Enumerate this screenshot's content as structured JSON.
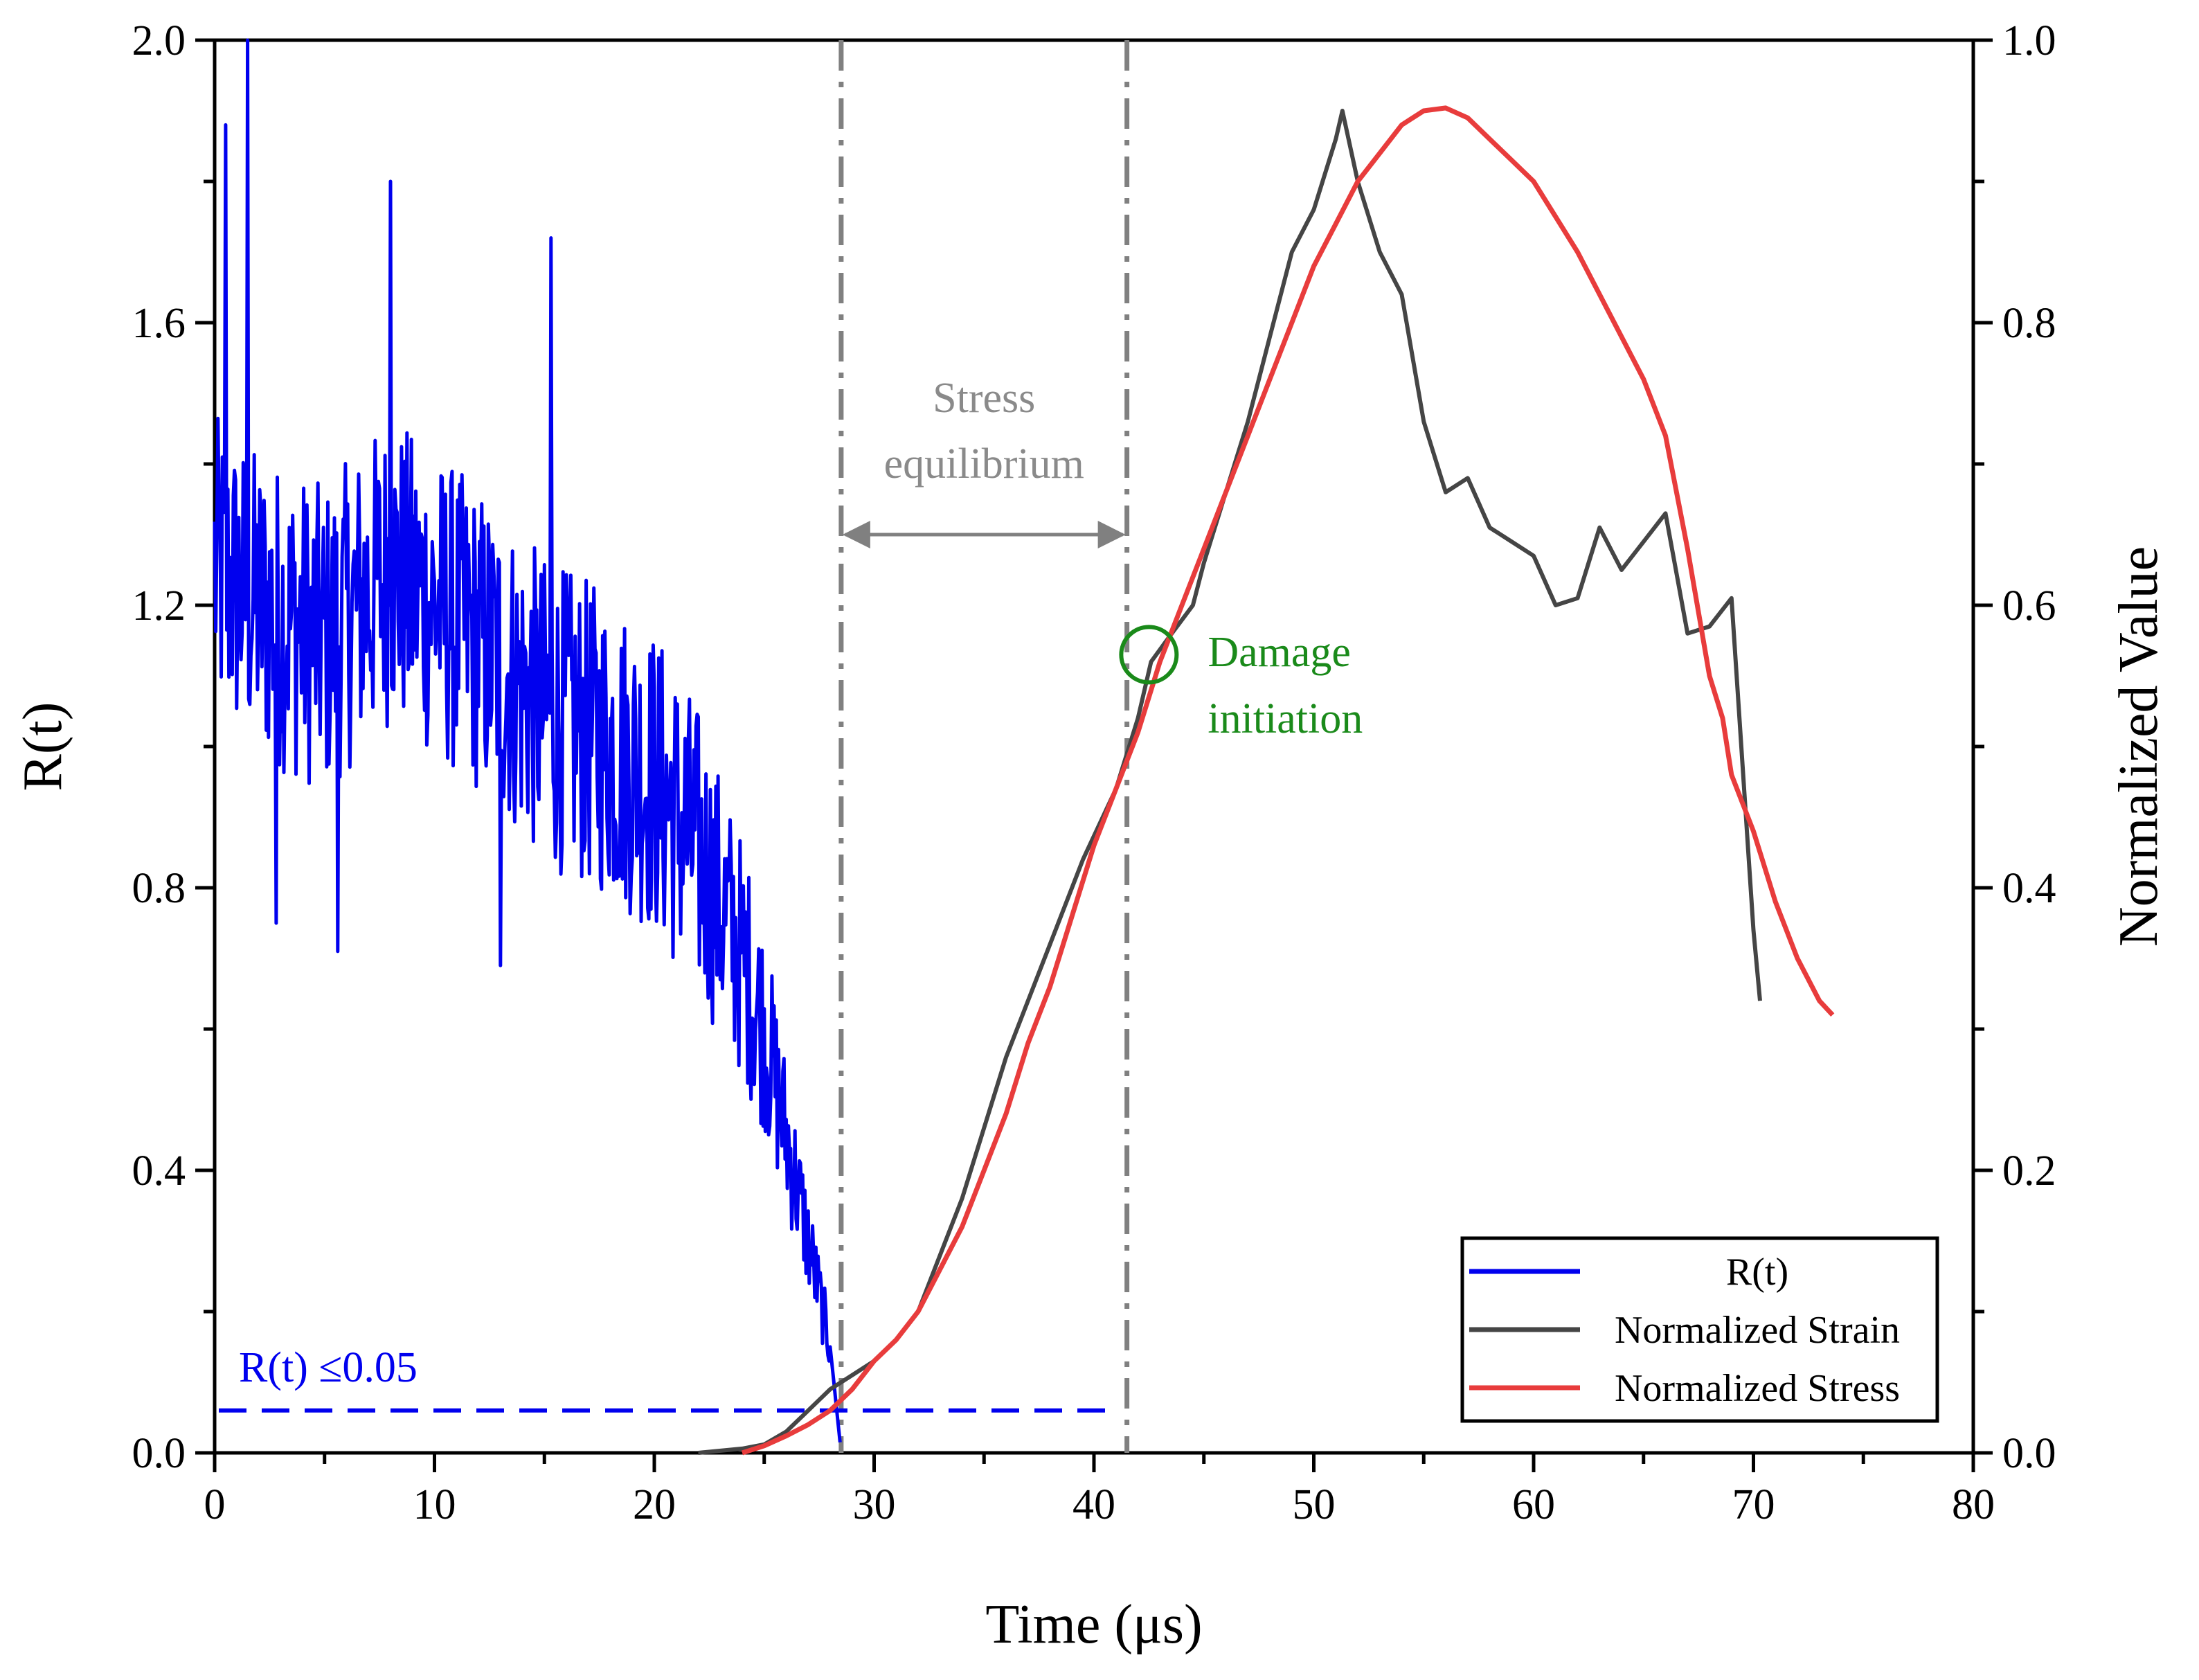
{
  "chart_data": {
    "type": "line",
    "xlabel": "Time (μs)",
    "ylabel_left": "R(t)",
    "ylabel_right": "Normalized Value",
    "xlim": [
      0,
      80
    ],
    "ylim_left": [
      0,
      2.0
    ],
    "ylim_right": [
      0,
      1.0
    ],
    "xticks": [
      "0",
      "10",
      "20",
      "30",
      "40",
      "50",
      "60",
      "70",
      "80"
    ],
    "yticks_left": [
      "0.0",
      "0.4",
      "0.8",
      "1.2",
      "1.6",
      "2.0"
    ],
    "yticks_right": [
      "0.0",
      "0.2",
      "0.4",
      "0.6",
      "0.8",
      "1.0"
    ],
    "legend": {
      "position": "bottom-right",
      "entries": [
        "R(t)",
        "Normalized Strain",
        "Normalized Stress"
      ]
    },
    "colors": {
      "rt": "#0000ee",
      "strain": "#454545",
      "stress": "#e83c3c",
      "guides": "#808080",
      "damage": "#1a8a1a"
    },
    "series": [
      {
        "name": "R(t)",
        "axis": "left",
        "style": "noisy decreasing",
        "trend": [
          [
            0,
            1.25
          ],
          [
            2,
            1.2
          ],
          [
            5,
            1.15
          ],
          [
            8,
            1.25
          ],
          [
            10,
            1.2
          ],
          [
            12,
            1.15
          ],
          [
            15,
            1.05
          ],
          [
            18,
            1.0
          ],
          [
            20,
            0.95
          ],
          [
            22,
            0.85
          ],
          [
            24,
            0.7
          ],
          [
            25,
            0.6
          ],
          [
            26,
            0.45
          ],
          [
            27,
            0.3
          ],
          [
            28,
            0.15
          ],
          [
            28.5,
            0.0
          ]
        ],
        "spikes": [
          [
            1.5,
            2.0
          ],
          [
            0.5,
            1.88
          ],
          [
            8,
            1.8
          ],
          [
            15.3,
            1.72
          ],
          [
            2.8,
            0.75
          ],
          [
            5.6,
            0.71
          ],
          [
            13,
            0.69
          ]
        ]
      },
      {
        "name": "Normalized Strain",
        "axis": "right",
        "x": [
          22,
          24,
          25,
          26,
          27,
          28,
          29,
          30,
          31,
          32,
          34,
          36,
          38,
          39.5,
          41,
          42,
          42.6,
          43.3,
          44.5,
          45,
          46,
          47,
          48,
          49,
          50,
          51,
          51.3,
          52,
          53,
          54,
          55,
          56,
          57,
          58,
          59,
          60,
          61,
          62,
          63,
          64,
          65,
          66,
          67,
          68,
          69,
          70,
          70.3
        ],
        "values": [
          0.0,
          0.003,
          0.006,
          0.015,
          0.03,
          0.045,
          0.055,
          0.065,
          0.08,
          0.1,
          0.18,
          0.28,
          0.36,
          0.42,
          0.47,
          0.52,
          0.56,
          0.575,
          0.6,
          0.63,
          0.68,
          0.73,
          0.79,
          0.85,
          0.88,
          0.93,
          0.95,
          0.9,
          0.85,
          0.82,
          0.73,
          0.68,
          0.69,
          0.655,
          0.645,
          0.635,
          0.6,
          0.605,
          0.655,
          0.625,
          0.645,
          0.665,
          0.58,
          0.585,
          0.605,
          0.37,
          0.32
        ]
      },
      {
        "name": "Normalized Stress",
        "axis": "right",
        "x": [
          24,
          25,
          26,
          27,
          28,
          29,
          30,
          31,
          32,
          33,
          34,
          35,
          36,
          37,
          38,
          39,
          40,
          41,
          42,
          43,
          44,
          45,
          46,
          47,
          48,
          49,
          50,
          51,
          52,
          53,
          54,
          55,
          56,
          57,
          58,
          59,
          60,
          61,
          62,
          63,
          64,
          65,
          66,
          67,
          68,
          68.6,
          69,
          70,
          71,
          72,
          73,
          73.6
        ],
        "values": [
          0.0,
          0.005,
          0.012,
          0.02,
          0.03,
          0.045,
          0.065,
          0.08,
          0.1,
          0.13,
          0.16,
          0.2,
          0.24,
          0.29,
          0.33,
          0.38,
          0.43,
          0.47,
          0.51,
          0.56,
          0.6,
          0.64,
          0.68,
          0.72,
          0.76,
          0.8,
          0.84,
          0.87,
          0.9,
          0.92,
          0.94,
          0.95,
          0.952,
          0.945,
          0.93,
          0.915,
          0.9,
          0.875,
          0.85,
          0.82,
          0.79,
          0.76,
          0.72,
          0.64,
          0.55,
          0.52,
          0.48,
          0.44,
          0.39,
          0.35,
          0.32,
          0.31
        ]
      }
    ],
    "guides": {
      "vlines": [
        28.5,
        41.5
      ],
      "threshold_y": 0.06,
      "threshold_range": [
        0,
        41.5
      ],
      "arrow_y": 1.3,
      "damage_point": [
        42.5,
        0.565
      ]
    },
    "annotations": {
      "stress_line1": "Stress",
      "stress_line2": "equilibrium",
      "damage_line1": "Damage",
      "damage_line2": "initiation",
      "threshold_label": "R(t) ≤0.05"
    }
  }
}
